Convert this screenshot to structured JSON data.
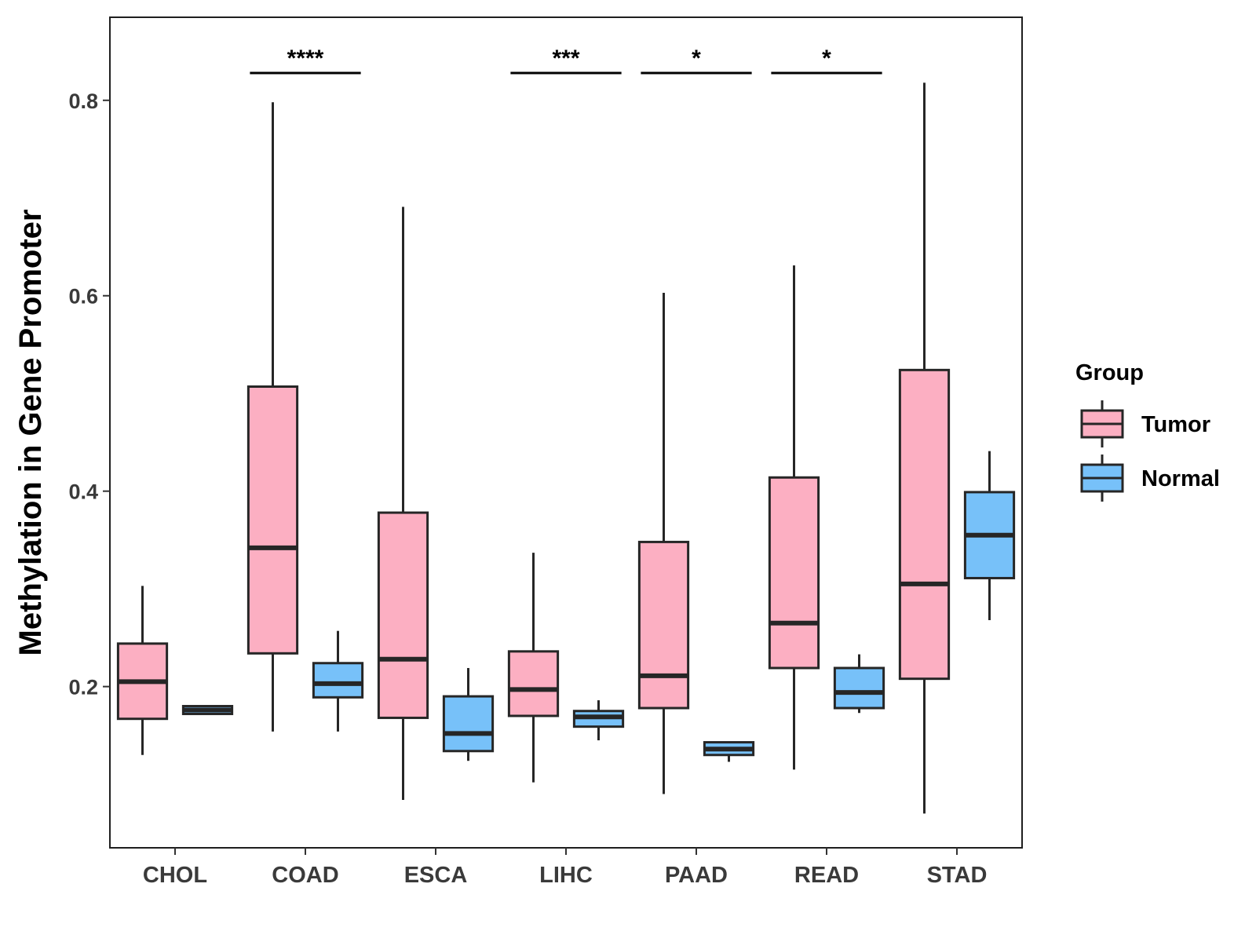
{
  "chart_data": {
    "type": "boxplot",
    "title": "",
    "xlabel": "",
    "ylabel": "Methylation in Gene Promoter",
    "ylim": [
      0.035,
      0.885
    ],
    "yticks": [
      0.2,
      0.4,
      0.6,
      0.8
    ],
    "ytick_labels": [
      "0.2",
      "0.4",
      "0.6",
      "0.8"
    ],
    "grid": false,
    "categories": [
      "CHOL",
      "COAD",
      "ESCA",
      "LIHC",
      "PAAD",
      "READ",
      "STAD"
    ],
    "series": [
      {
        "name": "Tumor",
        "color": "#fcafc2",
        "boxes": [
          {
            "min": 0.13,
            "q1": 0.167,
            "median": 0.205,
            "q3": 0.244,
            "max": 0.303
          },
          {
            "min": 0.154,
            "q1": 0.234,
            "median": 0.342,
            "q3": 0.507,
            "max": 0.798
          },
          {
            "min": 0.084,
            "q1": 0.168,
            "median": 0.228,
            "q3": 0.378,
            "max": 0.691
          },
          {
            "min": 0.102,
            "q1": 0.17,
            "median": 0.197,
            "q3": 0.236,
            "max": 0.337
          },
          {
            "min": 0.09,
            "q1": 0.178,
            "median": 0.211,
            "q3": 0.348,
            "max": 0.603
          },
          {
            "min": 0.115,
            "q1": 0.219,
            "median": 0.265,
            "q3": 0.414,
            "max": 0.631
          },
          {
            "min": 0.07,
            "q1": 0.208,
            "median": 0.305,
            "q3": 0.524,
            "max": 0.818
          }
        ]
      },
      {
        "name": "Normal",
        "color": "#77c1f9",
        "boxes": [
          {
            "min": 0.172,
            "q1": 0.172,
            "median": 0.176,
            "q3": 0.18,
            "max": 0.18
          },
          {
            "min": 0.154,
            "q1": 0.189,
            "median": 0.203,
            "q3": 0.224,
            "max": 0.257
          },
          {
            "min": 0.124,
            "q1": 0.134,
            "median": 0.152,
            "q3": 0.19,
            "max": 0.219
          },
          {
            "min": 0.145,
            "q1": 0.159,
            "median": 0.169,
            "q3": 0.175,
            "max": 0.186
          },
          {
            "min": 0.123,
            "q1": 0.13,
            "median": 0.136,
            "q3": 0.143,
            "max": 0.143
          },
          {
            "min": 0.173,
            "q1": 0.178,
            "median": 0.194,
            "q3": 0.219,
            "max": 0.233
          },
          {
            "min": 0.268,
            "q1": 0.311,
            "median": 0.355,
            "q3": 0.399,
            "max": 0.441
          }
        ]
      }
    ],
    "significance": [
      {
        "category": "COAD",
        "label": "****"
      },
      {
        "category": "LIHC",
        "label": "***"
      },
      {
        "category": "PAAD",
        "label": "*"
      },
      {
        "category": "READ",
        "label": "*"
      }
    ],
    "legend": {
      "title": "Group",
      "position": "right",
      "items": [
        "Tumor",
        "Normal"
      ]
    }
  }
}
